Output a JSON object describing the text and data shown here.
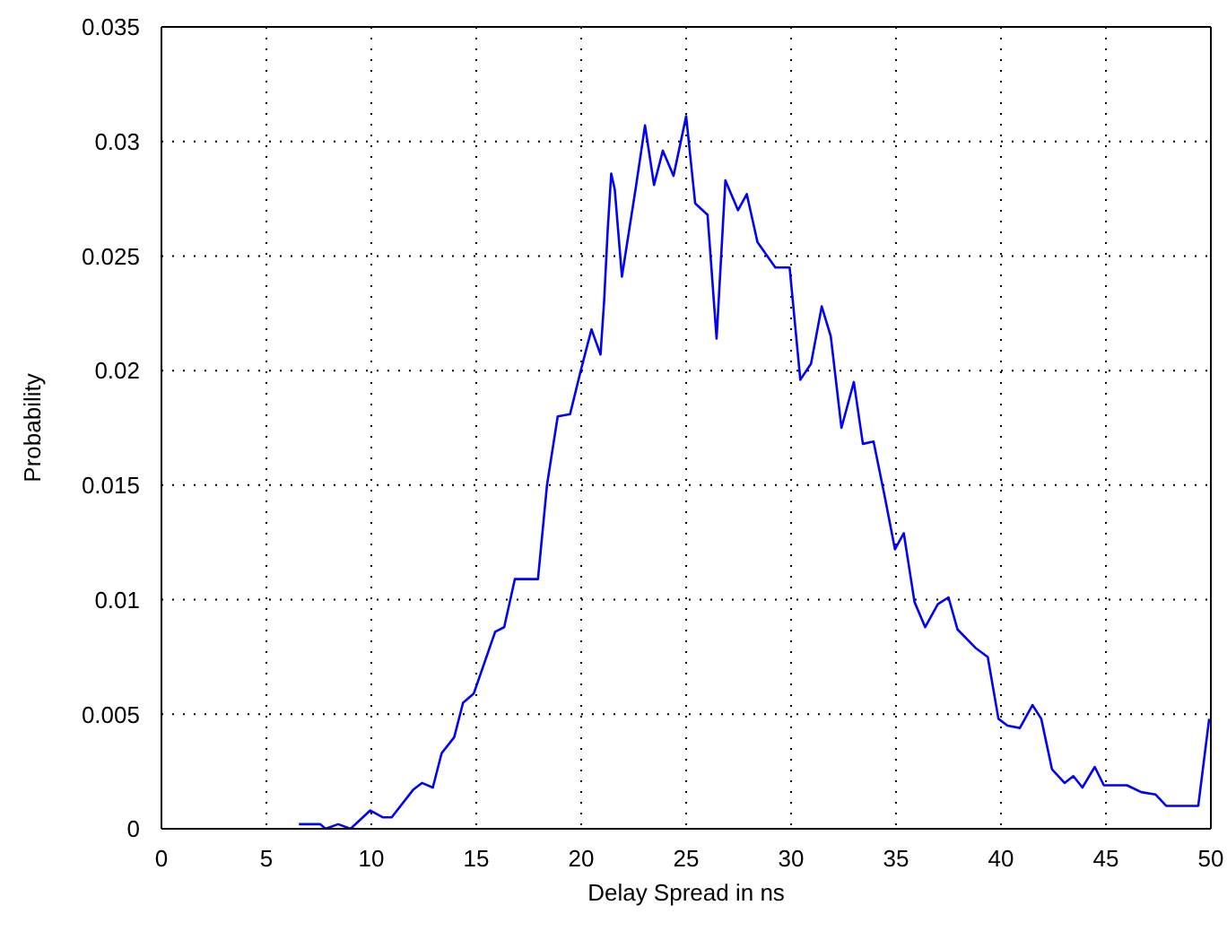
{
  "chart_data": {
    "type": "line",
    "xlabel": "Delay Spread in ns",
    "ylabel": "Probability",
    "x": [
      6.55,
      7.57,
      7.82,
      8.42,
      9.01,
      9.95,
      10.54,
      10.97,
      11.99,
      12.41,
      12.93,
      13.35,
      13.95,
      14.37,
      14.88,
      15.9,
      16.33,
      16.84,
      17.94,
      18.37,
      18.88,
      19.47,
      19.98,
      20.49,
      20.92,
      21.09,
      21.26,
      21.43,
      21.6,
      21.94,
      22.62,
      23.04,
      23.47,
      23.89,
      24.4,
      25.0,
      25.43,
      26.02,
      26.45,
      26.87,
      27.47,
      27.89,
      28.4,
      29.25,
      29.93,
      30.44,
      30.95,
      31.46,
      31.89,
      32.4,
      32.99,
      33.42,
      33.93,
      34.44,
      34.95,
      35.37,
      35.88,
      36.39,
      36.99,
      37.5,
      37.93,
      38.78,
      39.37,
      39.88,
      40.31,
      40.9,
      41.5,
      41.92,
      42.43,
      43.03,
      43.45,
      43.88,
      44.47,
      44.9,
      46.0,
      46.68,
      47.36,
      47.87,
      49.4,
      49.92
    ],
    "series": [
      {
        "color": "#0000ff",
        "values": [
          0.0002,
          0.0002,
          0,
          0.0002,
          0,
          0.0008,
          0.0005,
          0.0005,
          0.0017,
          0.002,
          0.0018,
          0.0033,
          0.004,
          0.0055,
          0.0059,
          0.0086,
          0.0088,
          0.0109,
          0.0109,
          0.015,
          0.018,
          0.0181,
          0.02,
          0.0218,
          0.0207,
          0.023,
          0.0261,
          0.0286,
          0.0279,
          0.0241,
          0.0281,
          0.0307,
          0.0281,
          0.0296,
          0.0285,
          0.0311,
          0.0273,
          0.0268,
          0.0214,
          0.0283,
          0.027,
          0.0277,
          0.0256,
          0.0245,
          0.0245,
          0.0196,
          0.0203,
          0.0228,
          0.0215,
          0.0175,
          0.0195,
          0.0168,
          0.0169,
          0.0146,
          0.0122,
          0.0129,
          0.0099,
          0.0088,
          0.0098,
          0.0101,
          0.0087,
          0.0079,
          0.0075,
          0.0048,
          0.0045,
          0.0044,
          0.0054,
          0.0048,
          0.0026,
          0.002,
          0.0023,
          0.0018,
          0.0027,
          0.0019,
          0.0019,
          0.0016,
          0.0015,
          0.001,
          0.001,
          0.0048
        ]
      }
    ],
    "xlim": [
      0,
      50
    ],
    "xticks": [
      0,
      5,
      10,
      15,
      20,
      25,
      30,
      35,
      40,
      45,
      50
    ],
    "ylim": [
      0,
      0.035
    ],
    "yticks": [
      0,
      0.005,
      0.01,
      0.015,
      0.02,
      0.025,
      0.03,
      0.035
    ],
    "grid": true,
    "marker": "none",
    "line_style": "solid"
  }
}
